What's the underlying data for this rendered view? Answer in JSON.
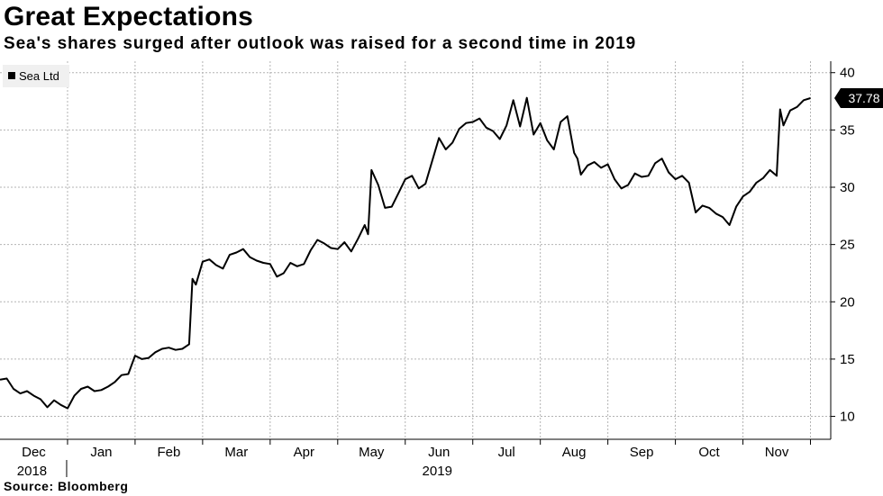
{
  "header": {
    "title": "Great Expectations",
    "subtitle": "Sea's shares surged after outlook was raised for a second time in 2019"
  },
  "footer": {
    "source": "Source: Bloomberg"
  },
  "colors": {
    "line": "#000000",
    "grid": "#b3b3b3",
    "legend_bg": "#f0f0f0",
    "last_label_bg": "#000000",
    "last_label_text": "#ffffff"
  },
  "chart_data": {
    "type": "line",
    "title": "Great Expectations",
    "subtitle": "Sea's shares surged after outlook was raised for a second time in 2019",
    "xlabel": "",
    "ylabel": "",
    "ylim": [
      8,
      41
    ],
    "yticks": [
      10,
      15,
      20,
      25,
      30,
      35,
      40
    ],
    "xlim": [
      0,
      12.3
    ],
    "month_ticks": [
      {
        "label": "Dec",
        "pos": 0.5
      },
      {
        "label": "Jan",
        "pos": 1.5
      },
      {
        "label": "Feb",
        "pos": 2.5
      },
      {
        "label": "Mar",
        "pos": 3.5
      },
      {
        "label": "Apr",
        "pos": 4.5
      },
      {
        "label": "May",
        "pos": 5.5
      },
      {
        "label": "Jun",
        "pos": 6.5
      },
      {
        "label": "Jul",
        "pos": 7.5
      },
      {
        "label": "Aug",
        "pos": 8.5
      },
      {
        "label": "Sep",
        "pos": 9.5
      },
      {
        "label": "Oct",
        "pos": 10.5
      },
      {
        "label": "Nov",
        "pos": 11.5
      }
    ],
    "year_labels": [
      {
        "label": "2018",
        "pos": 0.5
      },
      {
        "label": "2019",
        "pos": 6.5
      }
    ],
    "year_separator_pos": 1.0,
    "legend": [
      "Sea Ltd"
    ],
    "last_value_label": "37.78",
    "series": [
      {
        "name": "Sea Ltd",
        "x": [
          0,
          0.1,
          0.2,
          0.3,
          0.4,
          0.5,
          0.6,
          0.7,
          0.8,
          0.9,
          1.0,
          1.1,
          1.2,
          1.3,
          1.4,
          1.5,
          1.6,
          1.7,
          1.8,
          1.9,
          2.0,
          2.1,
          2.2,
          2.3,
          2.4,
          2.5,
          2.6,
          2.7,
          2.8,
          2.85,
          2.9,
          3.0,
          3.1,
          3.2,
          3.3,
          3.4,
          3.5,
          3.6,
          3.7,
          3.8,
          3.9,
          4.0,
          4.1,
          4.2,
          4.3,
          4.4,
          4.5,
          4.6,
          4.7,
          4.8,
          4.9,
          5.0,
          5.1,
          5.2,
          5.3,
          5.4,
          5.45,
          5.5,
          5.6,
          5.7,
          5.8,
          5.9,
          6.0,
          6.1,
          6.2,
          6.3,
          6.4,
          6.5,
          6.6,
          6.7,
          6.8,
          6.9,
          7.0,
          7.1,
          7.2,
          7.3,
          7.4,
          7.5,
          7.6,
          7.7,
          7.8,
          7.9,
          8.0,
          8.1,
          8.2,
          8.3,
          8.4,
          8.5,
          8.55,
          8.6,
          8.7,
          8.8,
          8.9,
          9.0,
          9.1,
          9.2,
          9.3,
          9.4,
          9.5,
          9.6,
          9.7,
          9.8,
          9.9,
          10.0,
          10.1,
          10.2,
          10.3,
          10.4,
          10.5,
          10.6,
          10.7,
          10.8,
          10.9,
          11.0,
          11.1,
          11.2,
          11.3,
          11.4,
          11.5,
          11.55,
          11.6,
          11.7,
          11.8,
          11.9,
          12.0
        ],
        "values": [
          13.2,
          13.3,
          12.4,
          12.0,
          12.2,
          11.8,
          11.5,
          10.8,
          11.4,
          11.0,
          10.7,
          11.8,
          12.4,
          12.6,
          12.2,
          12.3,
          12.6,
          13.0,
          13.6,
          13.7,
          15.3,
          15.0,
          15.1,
          15.6,
          15.9,
          16.0,
          15.8,
          15.9,
          16.3,
          22.0,
          21.5,
          23.5,
          23.7,
          23.2,
          22.9,
          24.1,
          24.3,
          24.6,
          23.9,
          23.6,
          23.4,
          23.3,
          22.2,
          22.5,
          23.4,
          23.1,
          23.3,
          24.5,
          25.4,
          25.1,
          24.7,
          24.6,
          25.2,
          24.4,
          25.5,
          26.7,
          25.9,
          31.5,
          30.2,
          28.2,
          28.3,
          29.5,
          30.7,
          31.0,
          29.9,
          30.3,
          32.3,
          34.3,
          33.3,
          33.9,
          35.1,
          35.6,
          35.7,
          36.0,
          35.2,
          34.9,
          34.2,
          35.4,
          37.6,
          35.3,
          37.8,
          34.6,
          35.6,
          34.1,
          33.3,
          35.7,
          36.2,
          33.0,
          32.5,
          31.1,
          31.9,
          32.2,
          31.7,
          32.0,
          30.7,
          29.9,
          30.2,
          31.2,
          30.9,
          31.0,
          32.1,
          32.5,
          31.3,
          30.7,
          31.0,
          30.4,
          27.8,
          28.4,
          28.2,
          27.7,
          27.4,
          26.7,
          28.3,
          29.2,
          29.6,
          30.4,
          30.8,
          31.5,
          31.0,
          36.8,
          35.4,
          36.7,
          37.0,
          37.6,
          37.78
        ]
      }
    ]
  }
}
